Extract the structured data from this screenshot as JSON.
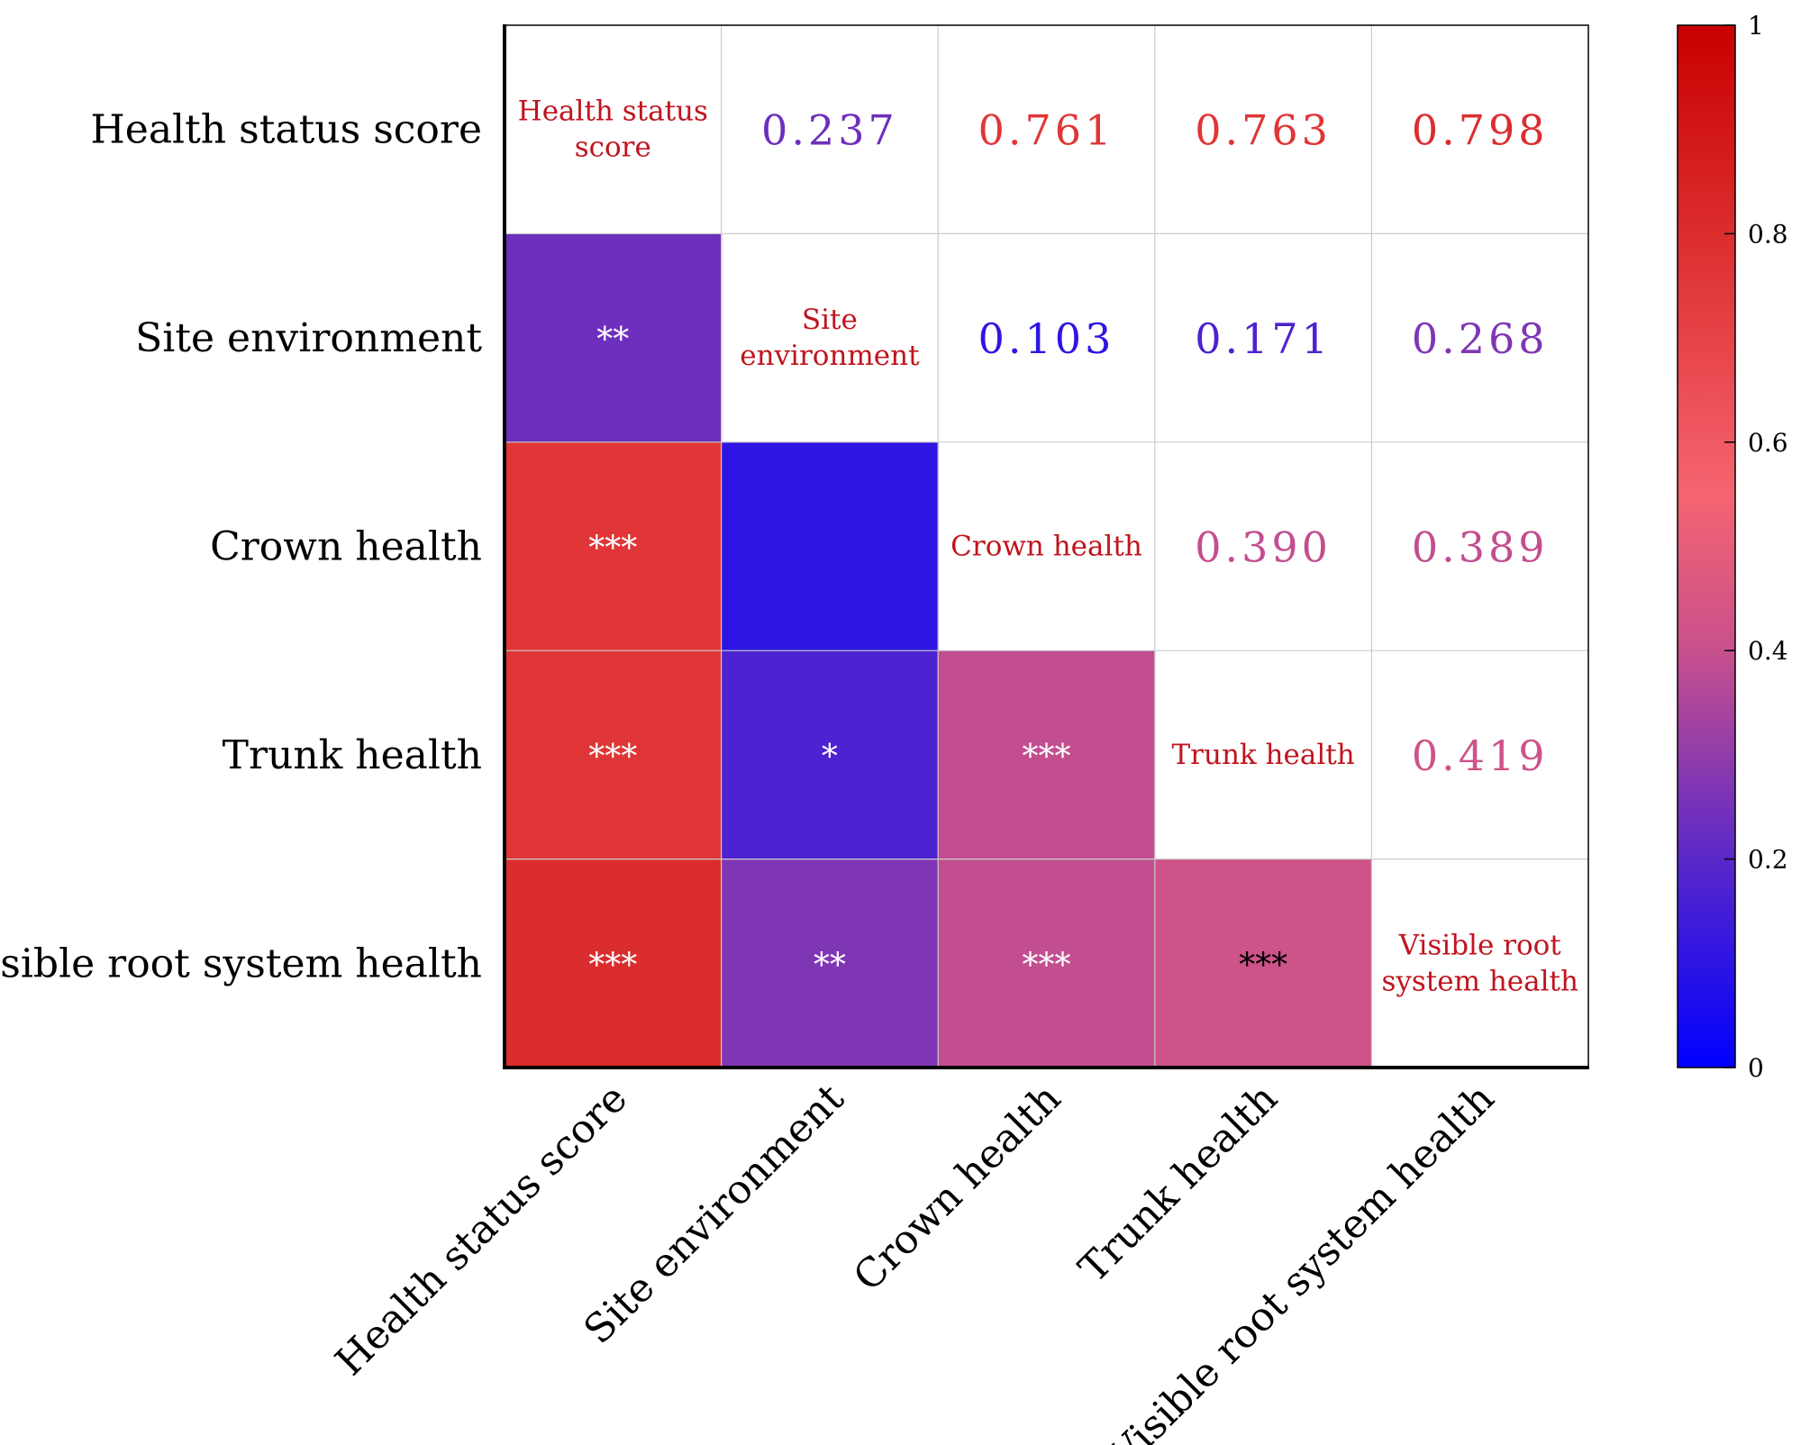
{
  "chart_data": {
    "type": "heatmap",
    "variables": [
      "Health status score",
      "Site environment",
      "Crown health",
      "Trunk health",
      "Visible root system health"
    ],
    "diagonal_labels": [
      [
        "Health status",
        "score"
      ],
      [
        "Site",
        "environment"
      ],
      [
        "Crown health"
      ],
      [
        "Trunk health"
      ],
      [
        "Visible root",
        "system health"
      ]
    ],
    "matrix": [
      [
        1,
        0.237,
        0.761,
        0.763,
        0.798
      ],
      [
        0.237,
        1,
        0.103,
        0.171,
        0.268
      ],
      [
        0.761,
        0.103,
        1,
        0.39,
        0.389
      ],
      [
        0.763,
        0.171,
        0.39,
        1,
        0.419
      ],
      [
        0.798,
        0.268,
        0.389,
        0.419,
        1
      ]
    ],
    "upper_text": [
      [
        null,
        "0.237",
        "0.761",
        "0.763",
        "0.798"
      ],
      [
        null,
        null,
        "0.103",
        "0.171",
        "0.268"
      ],
      [
        null,
        null,
        null,
        "0.390",
        "0.389"
      ],
      [
        null,
        null,
        null,
        null,
        "0.419"
      ],
      [
        null,
        null,
        null,
        null,
        null
      ]
    ],
    "significance": [
      [
        null,
        null,
        null,
        null,
        null
      ],
      [
        "**",
        null,
        null,
        null,
        null
      ],
      [
        "***",
        "",
        null,
        null,
        null
      ],
      [
        "***",
        "*",
        "***",
        null,
        null
      ],
      [
        "***",
        "**",
        "***",
        "***",
        null
      ]
    ],
    "colorbar": {
      "min": 0,
      "max": 1,
      "ticks": [
        0,
        0.2,
        0.4,
        0.6,
        0.8,
        1
      ],
      "tick_labels": [
        "0",
        "0.2",
        "0.4",
        "0.6",
        "0.8",
        "1"
      ],
      "stops": [
        {
          "v": 0.0,
          "color": "#0000ff"
        },
        {
          "v": 0.2,
          "color": "#5a28c8"
        },
        {
          "v": 0.4,
          "color": "#c8508c"
        },
        {
          "v": 0.55,
          "color": "#f56470"
        },
        {
          "v": 0.8,
          "color": "#dc2d2d"
        },
        {
          "v": 1.0,
          "color": "#c80000"
        }
      ]
    }
  },
  "colors": {
    "diagonal_text": "#c0141e",
    "grid": "#cccccc",
    "frame": "#000000"
  }
}
